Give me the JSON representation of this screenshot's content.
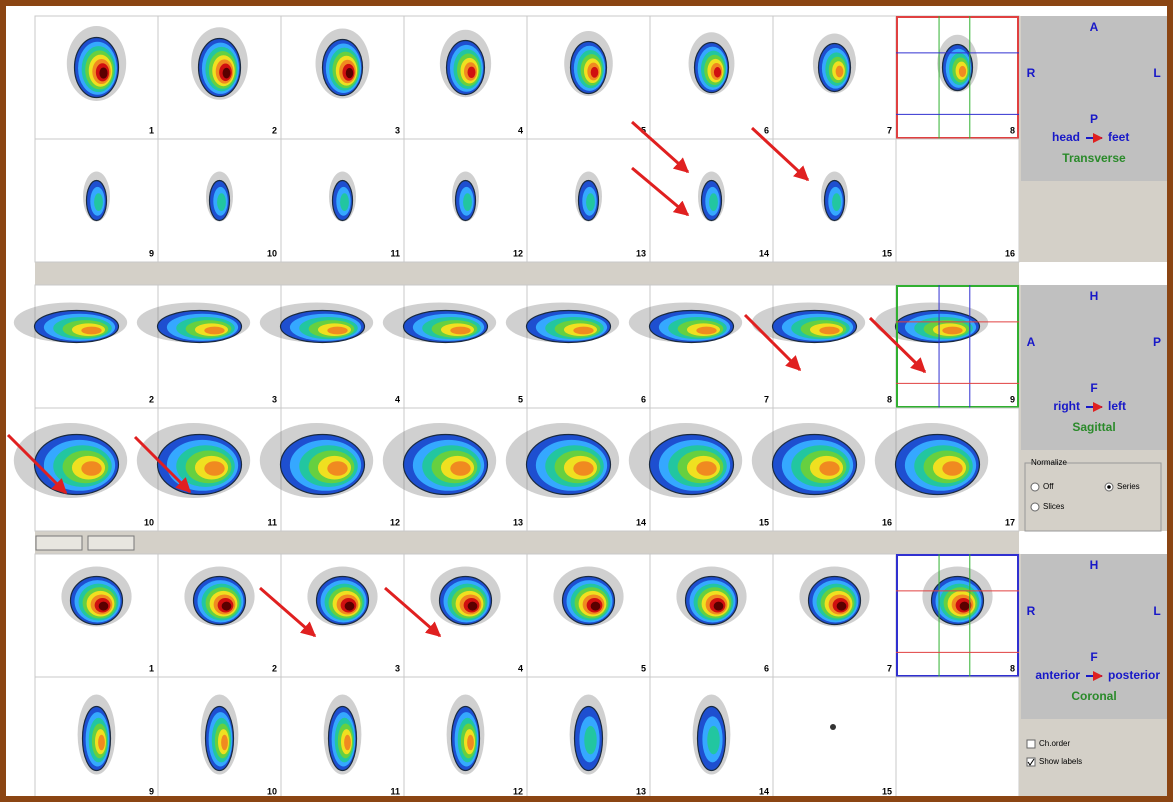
{
  "transverse": {
    "slice_labels": [
      "1",
      "2",
      "3",
      "4",
      "5",
      "6",
      "7",
      "8",
      "9",
      "10",
      "11",
      "12",
      "13",
      "14",
      "15",
      "16"
    ],
    "top": "A",
    "left": "R",
    "right": "L",
    "bottom": "P",
    "from": "head",
    "to": "feet",
    "name": "Transverse"
  },
  "sagittal": {
    "slice_labels": [
      "2",
      "3",
      "4",
      "5",
      "6",
      "7",
      "8",
      "9",
      "10",
      "11",
      "12",
      "13",
      "14",
      "15",
      "16",
      "17"
    ],
    "top": "H",
    "left": "A",
    "right": "P",
    "bottom": "F",
    "from": "right",
    "to": "left",
    "name": "Sagittal"
  },
  "normalize": {
    "title": "Normalize",
    "options": [
      "Off",
      "Series",
      "Slices"
    ]
  },
  "coronal": {
    "slice_labels": [
      "1",
      "2",
      "3",
      "4",
      "5",
      "6",
      "7",
      "8",
      "9",
      "10",
      "11",
      "12",
      "13",
      "14",
      "15"
    ],
    "top": "H",
    "left": "R",
    "right": "L",
    "bottom": "F",
    "from": "anterior",
    "to": "posterior",
    "name": "Coronal"
  },
  "options": {
    "checkboxes": [
      "Ch.order",
      "Show labels"
    ]
  }
}
